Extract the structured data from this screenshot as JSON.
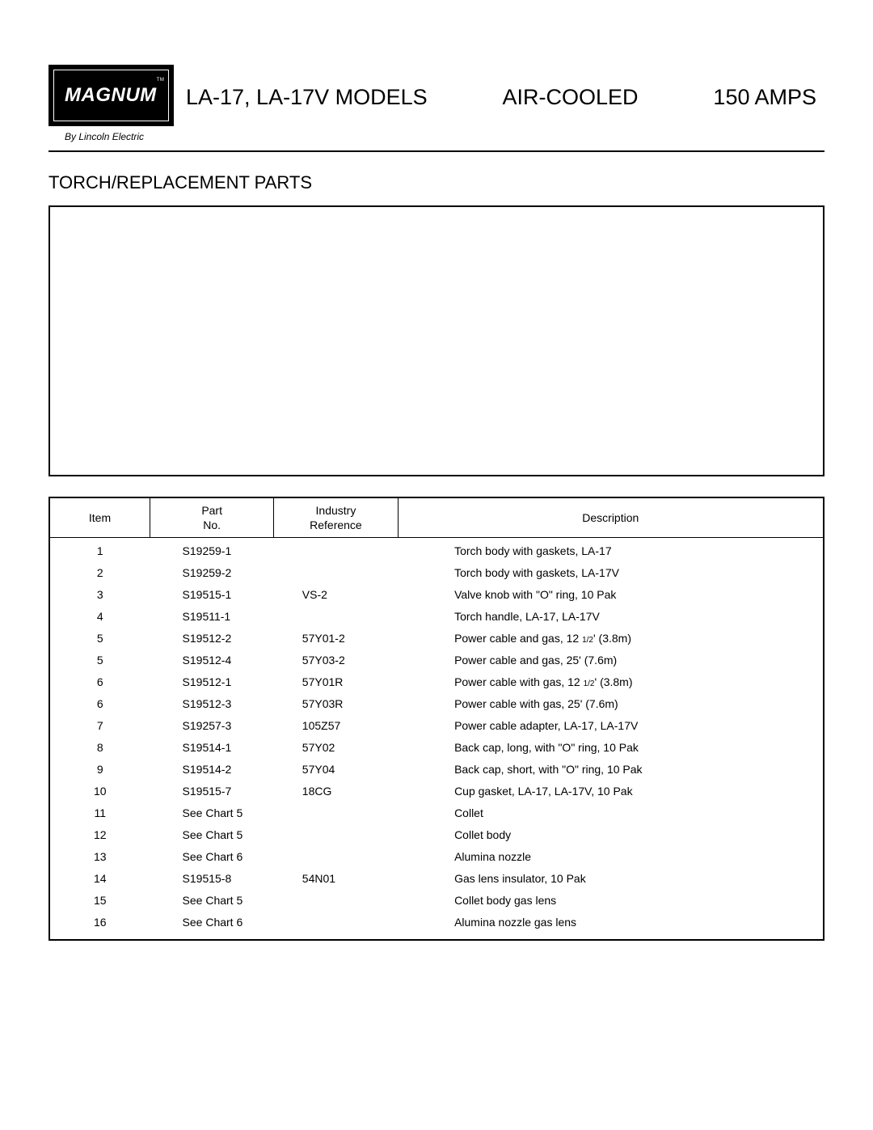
{
  "logo": {
    "text": "MAGNUM",
    "tm": "TM",
    "subtitle": "By Lincoln Electric"
  },
  "header": {
    "model": "LA-17, LA-17V MODELS",
    "cooling": "AIR-COOLED",
    "amps": "150 AMPS"
  },
  "section_title": "TORCH/REPLACEMENT PARTS",
  "table": {
    "columns": {
      "item": "Item",
      "part_line1": "Part",
      "part_line2": "No.",
      "industry_line1": "Industry",
      "industry_line2": "Reference",
      "description": "Description"
    },
    "rows": [
      {
        "item": "1",
        "part": "S19259-1",
        "industry": "",
        "desc": "Torch body with gaskets, LA-17"
      },
      {
        "item": "2",
        "part": "S19259-2",
        "industry": "",
        "desc": "Torch body with gaskets, LA-17V"
      },
      {
        "item": "3",
        "part": "S19515-1",
        "industry": "VS-2",
        "desc": "Valve knob with \"O\" ring, 10 Pak"
      },
      {
        "item": "4",
        "part": "S19511-1",
        "industry": "",
        "desc": "Torch handle, LA-17, LA-17V"
      },
      {
        "item": "5",
        "part": "S19512-2",
        "industry": "57Y01-2",
        "desc": "Power cable and gas, 12 ½' (3.8m)"
      },
      {
        "item": "5",
        "part": "S19512-4",
        "industry": "57Y03-2",
        "desc": "Power cable and gas, 25' (7.6m)"
      },
      {
        "item": "6",
        "part": "S19512-1",
        "industry": "57Y01R",
        "desc": "Power cable with gas, 12 ½' (3.8m)"
      },
      {
        "item": "6",
        "part": "S19512-3",
        "industry": "57Y03R",
        "desc": "Power cable with gas, 25' (7.6m)"
      },
      {
        "item": "7",
        "part": "S19257-3",
        "industry": "105Z57",
        "desc": "Power cable adapter, LA-17, LA-17V"
      },
      {
        "item": "8",
        "part": "S19514-1",
        "industry": "57Y02",
        "desc": "Back cap, long, with \"O\" ring, 10 Pak"
      },
      {
        "item": "9",
        "part": "S19514-2",
        "industry": "57Y04",
        "desc": "Back cap, short, with \"O\" ring, 10 Pak"
      },
      {
        "item": "10",
        "part": "S19515-7",
        "industry": "18CG",
        "desc": "Cup gasket, LA-17, LA-17V, 10 Pak"
      },
      {
        "item": "11",
        "part": "See Chart 5",
        "industry": "",
        "desc": "Collet"
      },
      {
        "item": "12",
        "part": "See Chart 5",
        "industry": "",
        "desc": "Collet body"
      },
      {
        "item": "13",
        "part": "See Chart 6",
        "industry": "",
        "desc": "Alumina nozzle"
      },
      {
        "item": "14",
        "part": "S19515-8",
        "industry": "54N01",
        "desc": "Gas lens insulator, 10 Pak"
      },
      {
        "item": "15",
        "part": "See Chart 5",
        "industry": "",
        "desc": "Collet body gas lens"
      },
      {
        "item": "16",
        "part": "See Chart 6",
        "industry": "",
        "desc": "Alumina nozzle gas lens"
      }
    ]
  },
  "styling": {
    "page_bg": "#ffffff",
    "text_color": "#000000",
    "logo_bg": "#000000",
    "logo_text": "#ffffff",
    "border_color": "#000000",
    "title_fontsize": 27,
    "section_title_fontsize": 22,
    "body_fontsize": 14,
    "logo_subtitle_fontsize": 12
  }
}
